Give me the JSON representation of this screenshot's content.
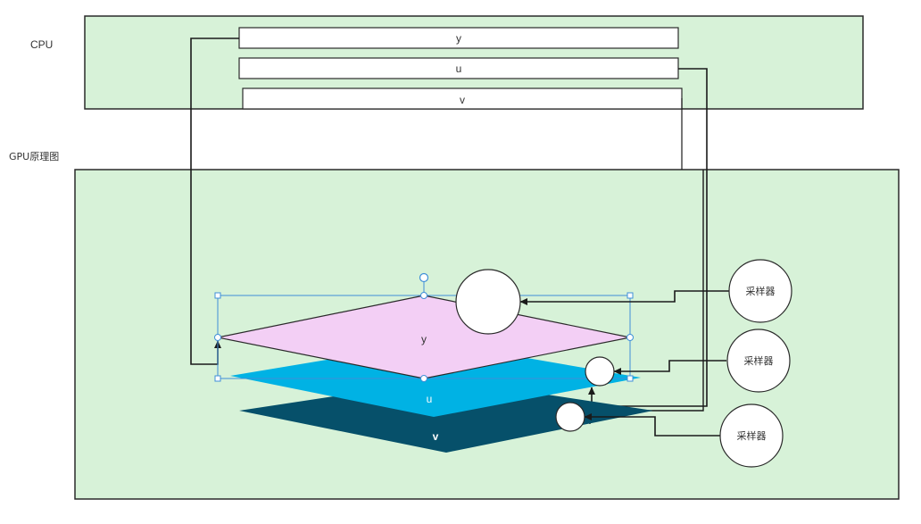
{
  "cpu": {
    "title": "CPU",
    "buffers": {
      "y": "y",
      "u": "u",
      "v": "v"
    }
  },
  "gpu": {
    "title": "GPU原理图",
    "planes": {
      "y": "y",
      "u": "u",
      "v": "v"
    }
  },
  "samplers": [
    "采样器",
    "采样器",
    "采样器"
  ],
  "colors": {
    "container_fill": "#d7f2d8",
    "container_stroke": "#2a2a2a",
    "plane_y": "#f3cff5",
    "plane_u": "#00b2e4",
    "plane_v": "#06506a",
    "selection": "#3f8fd8"
  }
}
